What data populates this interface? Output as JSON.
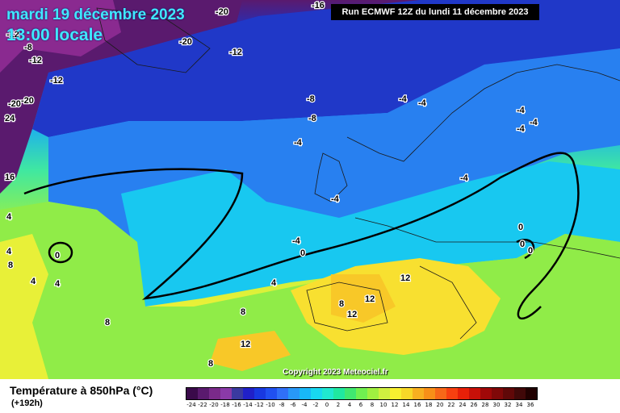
{
  "header": {
    "date_line": "mardi 19 décembre 2023",
    "time_line": "13:00 locale",
    "run_info": "Run ECMWF 12Z du lundi 11 décembre 2023"
  },
  "map": {
    "isotherm_labels": [
      "-20",
      "-16",
      "-20",
      "-12",
      "-12",
      "-8",
      "-8",
      "-12",
      "-20",
      "-20",
      "-12",
      "-8",
      "-4",
      "-4",
      "-4",
      "-4",
      "-4",
      "-4",
      "-4",
      "-4",
      "-4",
      "0",
      "0",
      "0",
      "0",
      "4",
      "4",
      "4",
      "4",
      "4",
      "8",
      "8",
      "8",
      "8",
      "8",
      "12",
      "12",
      "12",
      "12",
      "16",
      "24",
      "0"
    ],
    "colors": {
      "cold": "#5a1a6e",
      "freezing": "#18c8f0",
      "mild": "#f8f030"
    }
  },
  "copyright": "Copyright 2023 Meteociel.fr",
  "legend": {
    "title": "Température à 850hPa (°C)",
    "subtitle": "(+192h)",
    "tick_labels": [
      "-24",
      "-22",
      "-20",
      "-18",
      "-16",
      "-14",
      "-12",
      "-10",
      "-8",
      "-6",
      "-4",
      "-2",
      "0",
      "2",
      "4",
      "6",
      "8",
      "10",
      "12",
      "14",
      "16",
      "18",
      "20",
      "22",
      "24",
      "26",
      "28",
      "30",
      "32",
      "34",
      "36"
    ],
    "colors": [
      "#3a0a4a",
      "#5a1a6e",
      "#7a2a8a",
      "#8a3aa8",
      "#3a3aa0",
      "#2020c8",
      "#1838e0",
      "#2050f0",
      "#3070f8",
      "#2898f8",
      "#18b8f8",
      "#18d8f0",
      "#20e8d0",
      "#20e8a0",
      "#40e870",
      "#70f050",
      "#a0f040",
      "#d0f040",
      "#f8f030",
      "#f8d828",
      "#f8b020",
      "#f89018",
      "#f86818",
      "#f84010",
      "#e82008",
      "#c81008",
      "#a00808",
      "#800808",
      "#600808",
      "#400808",
      "#200000"
    ]
  }
}
